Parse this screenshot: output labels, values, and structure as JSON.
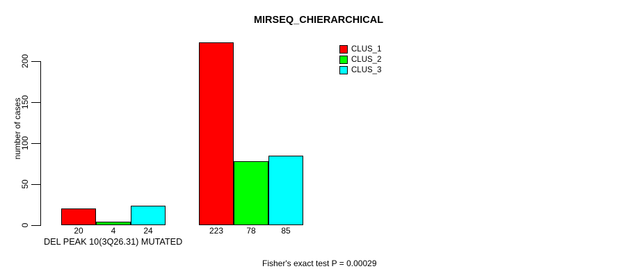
{
  "chart_data": {
    "type": "bar",
    "title": "MIRSEQ_CHIERARCHICAL",
    "xlabel": "DEL PEAK 10(3Q26.31) MUTATED",
    "ylabel": "number of cases",
    "annotation": "Fisher's exact test P = 0.00029",
    "categories": [
      "",
      ""
    ],
    "series": [
      {
        "name": "CLUS_1",
        "color": "#FF0000",
        "values": [
          20,
          223
        ]
      },
      {
        "name": "CLUS_2",
        "color": "#00FF00",
        "values": [
          4,
          78
        ]
      },
      {
        "name": "CLUS_3",
        "color": "#00FFFF",
        "values": [
          24,
          85
        ]
      }
    ],
    "yticks": [
      0,
      50,
      100,
      150,
      200
    ],
    "ylim": [
      0,
      223
    ],
    "grid": false,
    "legend_position": "top-right",
    "bar_value_labels_visible": true
  }
}
